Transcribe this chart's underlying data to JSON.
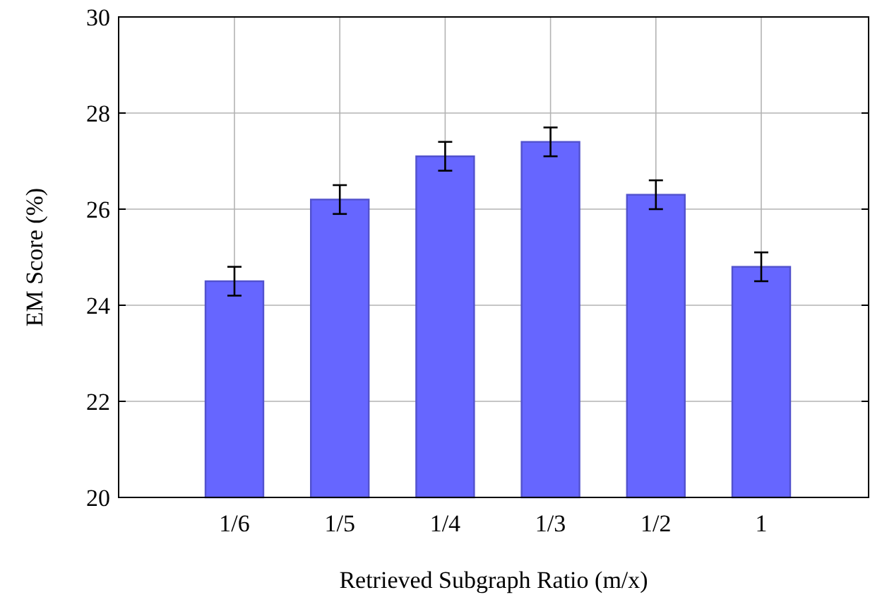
{
  "chart_data": {
    "type": "bar",
    "xlabel": "Retrieved Subgraph Ratio (m/x)",
    "ylabel": "EM Score (%)",
    "categories": [
      "1/6",
      "1/5",
      "1/4",
      "1/3",
      "1/2",
      "1"
    ],
    "values": [
      24.5,
      26.2,
      27.1,
      27.4,
      26.3,
      24.8
    ],
    "errors": [
      0.3,
      0.3,
      0.3,
      0.3,
      0.3,
      0.3
    ],
    "color": "#6666ff",
    "ylim": [
      20,
      30
    ],
    "yticks": [
      20,
      22,
      24,
      26,
      28,
      30
    ],
    "grid": true
  }
}
